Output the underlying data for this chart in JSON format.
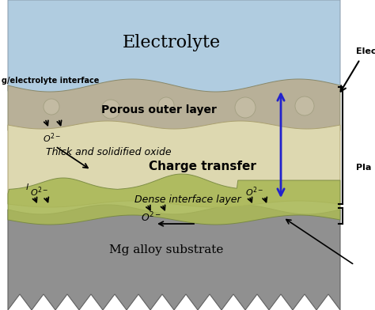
{
  "electrolyte_color": "#b0cce0",
  "porous_outer_color": "#b8b098",
  "thick_oxide_color": "#ddd8b0",
  "dense_layer_color": "#aab858",
  "dense_layer_color2": "#c8d870",
  "substrate_color": "#909090",
  "substrate_dark": "#787878",
  "background_color": "#ffffff",
  "label_electrolyte": "Electrolyte",
  "label_porous": "Porous outer layer",
  "label_charge": "Charge transfer",
  "label_thick": "Thick and solidified oxide",
  "label_dense": "Dense interface layer",
  "label_substrate": "Mg alloy substrate",
  "label_interface": "g/electrolyte interface",
  "label_electro_right": "Electro",
  "label_plasma_right": "Pla",
  "charge_arrow_color": "#2222cc",
  "arrow_color": "#000000"
}
